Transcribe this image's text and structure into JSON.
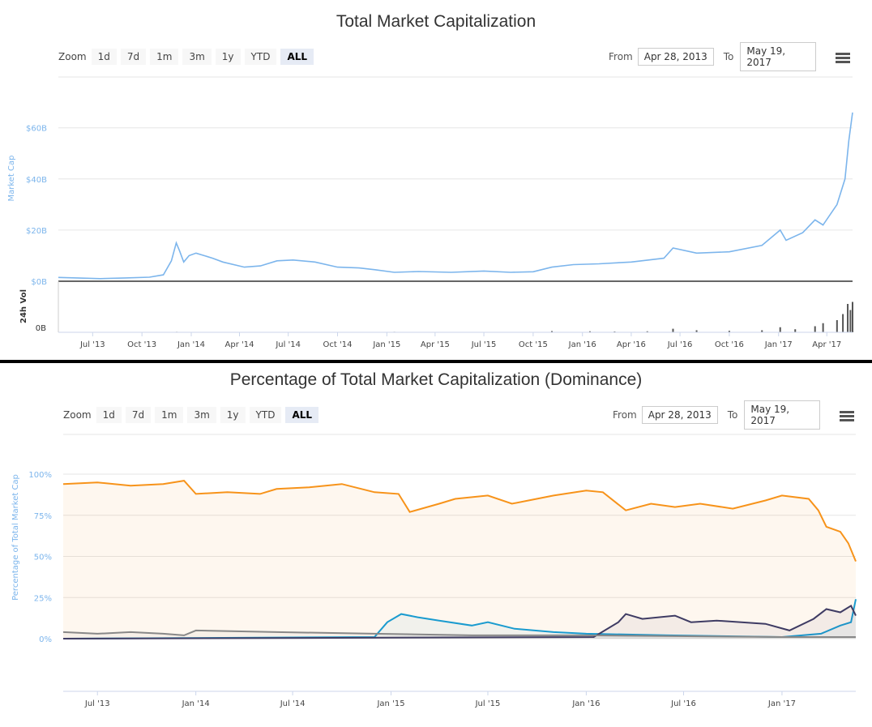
{
  "chart1": {
    "title": "Total Market Capitalization",
    "zoom_label": "Zoom",
    "zoom_buttons": [
      "1d",
      "7d",
      "1m",
      "3m",
      "1y",
      "YTD",
      "ALL"
    ],
    "active_zoom": "ALL",
    "from_label": "From",
    "from_value": "Apr 28, 2013",
    "to_label": "To",
    "to_value": "May 19, 2017",
    "menu_icon": "hamburger-menu-icon"
  },
  "chart2": {
    "title": "Percentage of Total Market Capitalization (Dominance)",
    "zoom_label": "Zoom",
    "zoom_buttons": [
      "1d",
      "7d",
      "1m",
      "3m",
      "1y",
      "YTD",
      "ALL"
    ],
    "active_zoom": "ALL",
    "from_label": "From",
    "from_value": "Apr 28, 2013",
    "to_label": "To",
    "to_value": "May 19, 2017",
    "menu_icon": "hamburger-menu-icon"
  },
  "chart_data": [
    {
      "type": "area",
      "title": "Total Market Capitalization",
      "ylabel": "Market Cap",
      "ylim": [
        0,
        70
      ],
      "y_unit": "billions USD",
      "y_ticks": [
        "$0B",
        "$20B",
        "$40B",
        "$60B"
      ],
      "x_ticks": [
        "Jul '13",
        "Oct '13",
        "Jan '14",
        "Apr '14",
        "Jul '14",
        "Oct '14",
        "Jan '15",
        "Apr '15",
        "Jul '15",
        "Oct '15",
        "Jan '16",
        "Apr '16",
        "Jul '16",
        "Oct '16",
        "Jan '17",
        "Apr '17"
      ],
      "x_range": [
        "2013-04-28",
        "2017-05-19"
      ],
      "series": [
        {
          "color": "#7cb5ec",
          "points": [
            [
              "2013-04-28",
              1.5
            ],
            [
              "2013-06-01",
              1.3
            ],
            [
              "2013-07-15",
              1.0
            ],
            [
              "2013-09-01",
              1.3
            ],
            [
              "2013-10-15",
              1.6
            ],
            [
              "2013-11-10",
              2.5
            ],
            [
              "2013-11-25",
              8.0
            ],
            [
              "2013-12-04",
              15.0
            ],
            [
              "2013-12-10",
              12.0
            ],
            [
              "2013-12-18",
              7.5
            ],
            [
              "2013-12-28",
              10.0
            ],
            [
              "2014-01-10",
              11.0
            ],
            [
              "2014-02-10",
              9.0
            ],
            [
              "2014-03-01",
              7.5
            ],
            [
              "2014-04-10",
              5.5
            ],
            [
              "2014-05-10",
              6.0
            ],
            [
              "2014-06-10",
              8.0
            ],
            [
              "2014-07-10",
              8.3
            ],
            [
              "2014-08-20",
              7.5
            ],
            [
              "2014-10-01",
              5.5
            ],
            [
              "2014-11-10",
              5.2
            ],
            [
              "2014-12-10",
              4.5
            ],
            [
              "2015-01-15",
              3.5
            ],
            [
              "2015-03-01",
              3.8
            ],
            [
              "2015-05-01",
              3.5
            ],
            [
              "2015-07-01",
              4.0
            ],
            [
              "2015-08-20",
              3.5
            ],
            [
              "2015-10-01",
              3.7
            ],
            [
              "2015-11-05",
              5.5
            ],
            [
              "2015-12-15",
              6.5
            ],
            [
              "2016-02-01",
              6.8
            ],
            [
              "2016-04-01",
              7.5
            ],
            [
              "2016-06-01",
              9.0
            ],
            [
              "2016-06-18",
              13.0
            ],
            [
              "2016-08-01",
              11.0
            ],
            [
              "2016-10-01",
              11.5
            ],
            [
              "2016-12-01",
              14.0
            ],
            [
              "2017-01-04",
              20.0
            ],
            [
              "2017-01-15",
              16.0
            ],
            [
              "2017-02-15",
              19.0
            ],
            [
              "2017-03-10",
              24.0
            ],
            [
              "2017-03-25",
              22.0
            ],
            [
              "2017-04-20",
              30.0
            ],
            [
              "2017-05-05",
              40.0
            ],
            [
              "2017-05-12",
              55.0
            ],
            [
              "2017-05-19",
              66.0
            ]
          ]
        }
      ]
    },
    {
      "type": "bar",
      "ylabel": "24h Vol",
      "y_ticks": [
        "0B"
      ],
      "ylim": [
        0,
        4
      ],
      "y_unit": "billions USD",
      "x_range": [
        "2013-04-28",
        "2017-05-19"
      ],
      "series": [
        {
          "color": "#555555",
          "points": [
            [
              "2013-12-05",
              0.05
            ],
            [
              "2014-01-15",
              0.04
            ],
            [
              "2014-03-01",
              0.04
            ],
            [
              "2015-01-15",
              0.05
            ],
            [
              "2015-07-15",
              0.04
            ],
            [
              "2015-11-05",
              0.12
            ],
            [
              "2016-01-15",
              0.1
            ],
            [
              "2016-03-01",
              0.08
            ],
            [
              "2016-05-01",
              0.1
            ],
            [
              "2016-06-18",
              0.35
            ],
            [
              "2016-08-01",
              0.2
            ],
            [
              "2016-10-01",
              0.15
            ],
            [
              "2016-12-01",
              0.2
            ],
            [
              "2017-01-04",
              0.5
            ],
            [
              "2017-02-01",
              0.3
            ],
            [
              "2017-03-10",
              0.6
            ],
            [
              "2017-03-25",
              0.9
            ],
            [
              "2017-04-20",
              1.2
            ],
            [
              "2017-05-01",
              1.8
            ],
            [
              "2017-05-10",
              2.8
            ],
            [
              "2017-05-15",
              2.2
            ],
            [
              "2017-05-19",
              3.0
            ]
          ]
        }
      ]
    },
    {
      "type": "area",
      "title": "Percentage of Total Market Capitalization (Dominance)",
      "ylabel": "Percentage of Total Market Cap",
      "ylim": [
        0,
        100
      ],
      "y_ticks": [
        "0%",
        "25%",
        "50%",
        "75%",
        "100%"
      ],
      "x_ticks": [
        "Jul '13",
        "Jan '14",
        "Jul '14",
        "Jan '15",
        "Jul '15",
        "Jan '16",
        "Jul '16",
        "Jan '17"
      ],
      "x_range": [
        "2013-04-28",
        "2017-05-19"
      ],
      "series": [
        {
          "color": "#f7931a",
          "points": [
            [
              "2013-04-28",
              94
            ],
            [
              "2013-07-01",
              95
            ],
            [
              "2013-09-01",
              93
            ],
            [
              "2013-11-01",
              94
            ],
            [
              "2013-12-10",
              96
            ],
            [
              "2014-01-01",
              88
            ],
            [
              "2014-03-01",
              89
            ],
            [
              "2014-05-01",
              88
            ],
            [
              "2014-06-01",
              91
            ],
            [
              "2014-08-01",
              92
            ],
            [
              "2014-10-01",
              94
            ],
            [
              "2014-12-01",
              89
            ],
            [
              "2015-01-15",
              88
            ],
            [
              "2015-02-05",
              77
            ],
            [
              "2015-04-01",
              82
            ],
            [
              "2015-05-01",
              85
            ],
            [
              "2015-07-01",
              87
            ],
            [
              "2015-08-15",
              82
            ],
            [
              "2015-09-15",
              84
            ],
            [
              "2015-11-01",
              87
            ],
            [
              "2016-01-01",
              90
            ],
            [
              "2016-02-01",
              89
            ],
            [
              "2016-03-15",
              78
            ],
            [
              "2016-05-01",
              82
            ],
            [
              "2016-06-15",
              80
            ],
            [
              "2016-08-01",
              82
            ],
            [
              "2016-10-01",
              79
            ],
            [
              "2016-12-01",
              84
            ],
            [
              "2017-01-01",
              87
            ],
            [
              "2017-02-20",
              85
            ],
            [
              "2017-03-10",
              78
            ],
            [
              "2017-03-25",
              68
            ],
            [
              "2017-04-20",
              65
            ],
            [
              "2017-05-05",
              58
            ],
            [
              "2017-05-19",
              47
            ]
          ]
        },
        {
          "color": "#1a9bcf",
          "points": [
            [
              "2013-04-28",
              0
            ],
            [
              "2014-12-01",
              1
            ],
            [
              "2014-12-25",
              10
            ],
            [
              "2015-01-20",
              15
            ],
            [
              "2015-02-20",
              13
            ],
            [
              "2015-04-01",
              11
            ],
            [
              "2015-06-01",
              8
            ],
            [
              "2015-07-01",
              10
            ],
            [
              "2015-08-20",
              6
            ],
            [
              "2015-11-01",
              4
            ],
            [
              "2016-01-01",
              3
            ],
            [
              "2016-06-01",
              2
            ],
            [
              "2017-01-01",
              1
            ],
            [
              "2017-03-15",
              3
            ],
            [
              "2017-04-20",
              8
            ],
            [
              "2017-05-10",
              10
            ],
            [
              "2017-05-19",
              24
            ]
          ]
        },
        {
          "color": "#3e3b63",
          "points": [
            [
              "2013-04-28",
              0
            ],
            [
              "2016-01-15",
              1
            ],
            [
              "2016-03-01",
              10
            ],
            [
              "2016-03-15",
              15
            ],
            [
              "2016-04-15",
              12
            ],
            [
              "2016-06-15",
              14
            ],
            [
              "2016-07-15",
              10
            ],
            [
              "2016-09-01",
              11
            ],
            [
              "2016-12-01",
              9
            ],
            [
              "2017-01-15",
              5
            ],
            [
              "2017-03-01",
              12
            ],
            [
              "2017-03-25",
              18
            ],
            [
              "2017-04-20",
              16
            ],
            [
              "2017-05-10",
              20
            ],
            [
              "2017-05-19",
              14
            ]
          ]
        },
        {
          "color": "#888888",
          "points": [
            [
              "2013-04-28",
              4
            ],
            [
              "2013-07-01",
              3
            ],
            [
              "2013-09-01",
              4
            ],
            [
              "2013-11-01",
              3
            ],
            [
              "2013-12-10",
              2
            ],
            [
              "2014-01-01",
              5
            ],
            [
              "2014-06-01",
              4
            ],
            [
              "2014-12-01",
              3
            ],
            [
              "2015-06-01",
              2
            ],
            [
              "2016-01-01",
              2
            ],
            [
              "2017-01-01",
              1
            ],
            [
              "2017-05-19",
              1
            ]
          ]
        }
      ]
    }
  ]
}
